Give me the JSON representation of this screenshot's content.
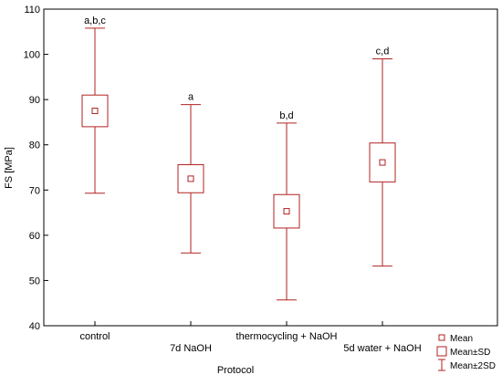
{
  "chart_data": {
    "type": "box",
    "title": "",
    "xlabel": "Protocol",
    "ylabel": "FS [MPa]",
    "ylim": [
      40,
      110
    ],
    "yticks": [
      40,
      50,
      60,
      70,
      80,
      90,
      100,
      110
    ],
    "grid": false,
    "legend_position": "bottom-right",
    "color": "#b22222",
    "categories": [
      "control",
      "7d NaOH",
      "thermocycling + NaOH",
      "5d water + NaOH"
    ],
    "groups": [
      {
        "category": "control",
        "mean": 87.5,
        "sd": 3.5,
        "minus2sd": 69.3,
        "plus2sd": 105.8,
        "letters": "a,b,c"
      },
      {
        "category": "7d NaOH",
        "mean": 72.5,
        "sd": 3.1,
        "minus2sd": 56.1,
        "plus2sd": 88.9,
        "letters": "a"
      },
      {
        "category": "thermocycling + NaOH",
        "mean": 65.3,
        "sd": 3.7,
        "minus2sd": 45.7,
        "plus2sd": 84.8,
        "letters": "b,d"
      },
      {
        "category": "5d water + NaOH",
        "mean": 76.1,
        "sd": 4.3,
        "minus2sd": 53.2,
        "plus2sd": 99.0,
        "letters": "c,d"
      }
    ],
    "legend": [
      "Mean",
      "Mean±SD",
      "Mean±2SD"
    ]
  }
}
